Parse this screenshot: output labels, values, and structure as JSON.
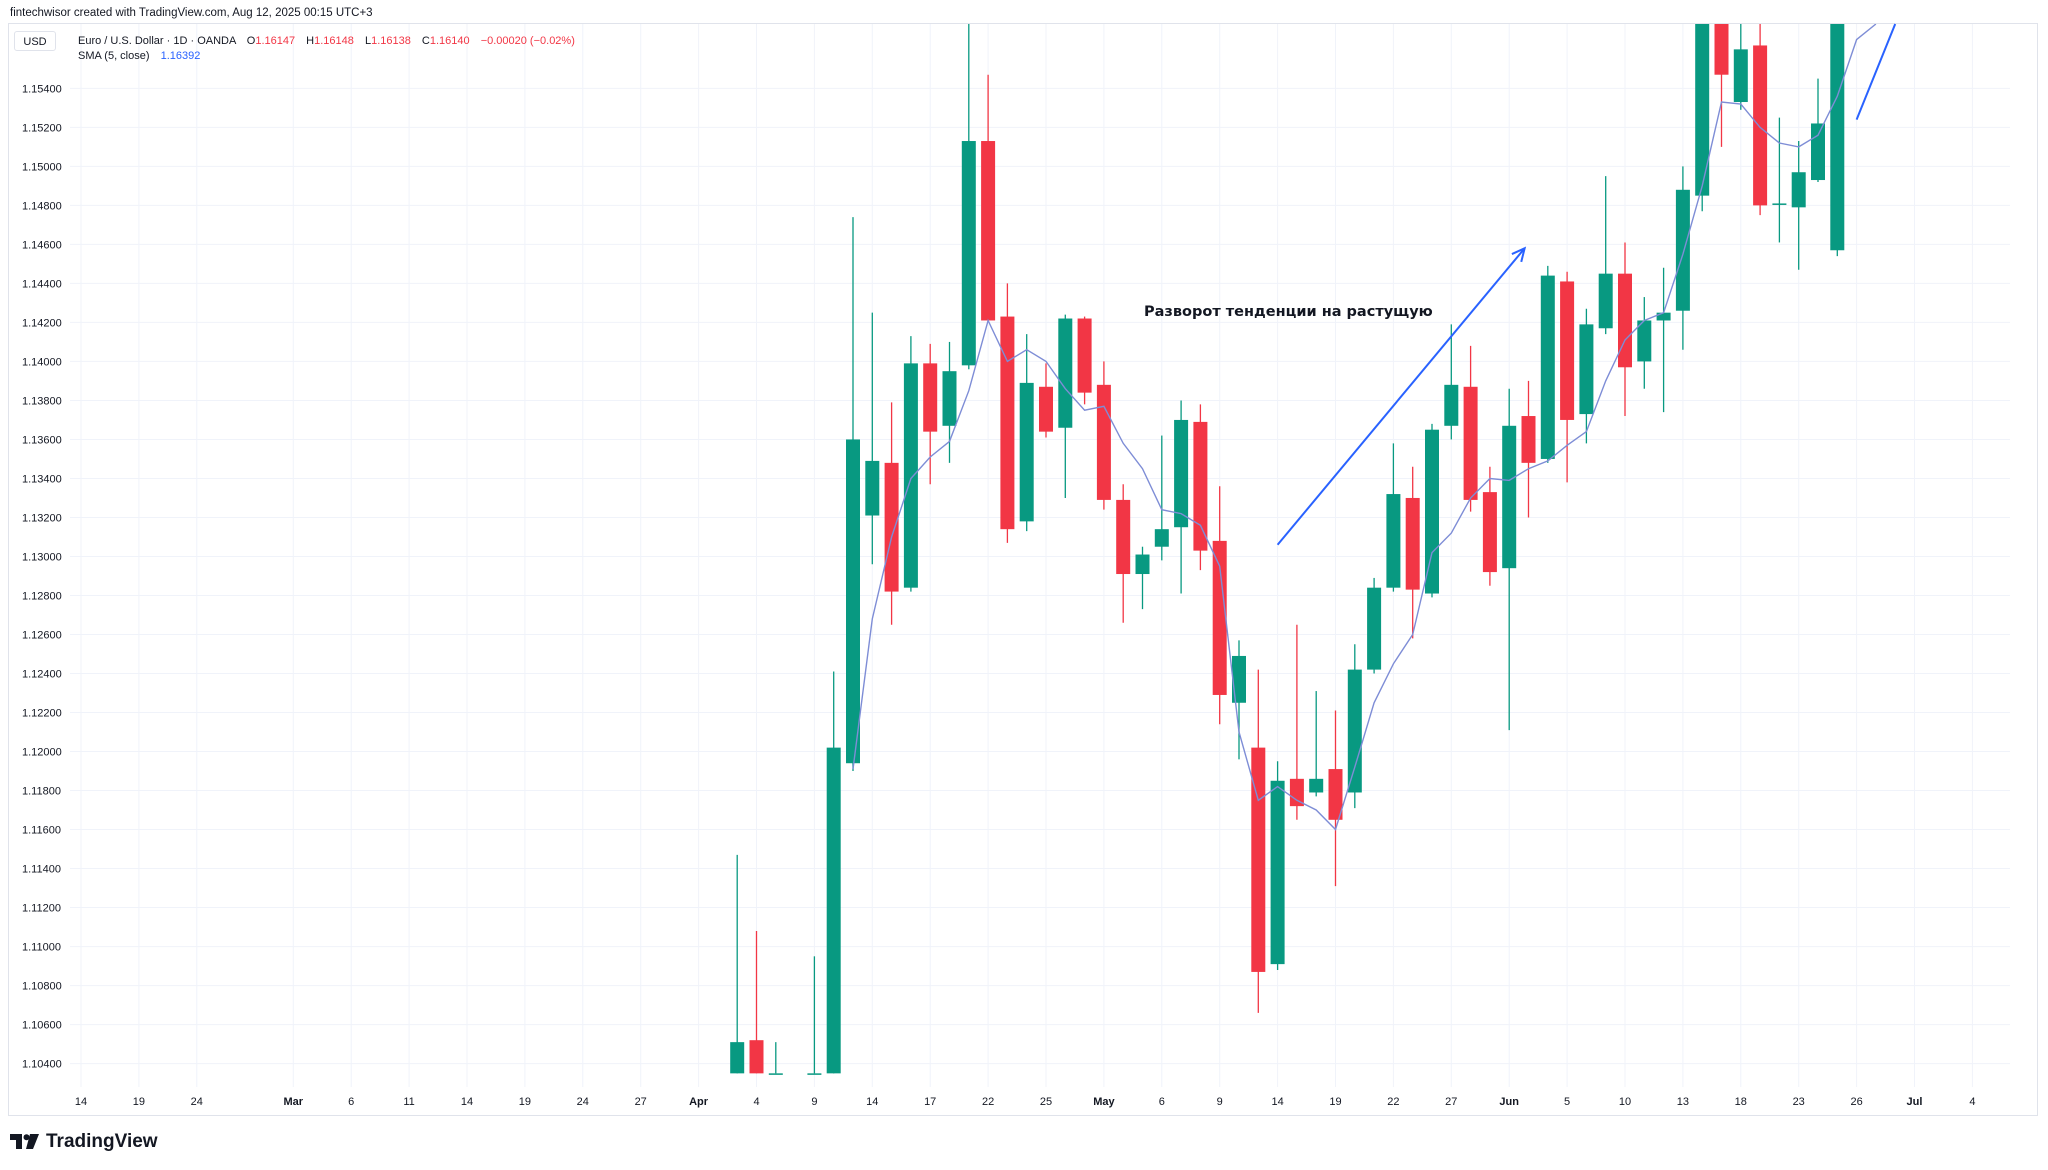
{
  "header": {
    "created_line": "fintechwisor created with TradingView.com, Aug 12, 2025 00:15 UTC+3"
  },
  "legend": {
    "symbol": "Euro / U.S. Dollar · 1D · OANDA",
    "o_label": "O",
    "o_value": "1.16147",
    "h_label": "H",
    "h_value": "1.16148",
    "l_label": "L",
    "l_value": "1.16138",
    "c_label": "C",
    "c_value": "1.16140",
    "change": "−0.00020 (−0.02%)",
    "sma_label": "SMA (5, close)",
    "sma_value": "1.16392"
  },
  "currency_button": "USD",
  "annotation_text": "Разворот тенденции на растущую",
  "brand": {
    "name": "TradingView"
  },
  "colors": {
    "up": "#089981",
    "down": "#f23645",
    "sma": "#7e8dd6",
    "arrow": "#2962ff",
    "grid": "#f0f3fa"
  },
  "chart_data": {
    "type": "candlestick",
    "ylim": [
      1.1028,
      1.1573
    ],
    "yticks": [
      "1.15400",
      "1.15200",
      "1.15000",
      "1.14800",
      "1.14600",
      "1.14400",
      "1.14200",
      "1.14000",
      "1.13800",
      "1.13600",
      "1.13400",
      "1.13200",
      "1.13000",
      "1.12800",
      "1.12600",
      "1.12400",
      "1.12200",
      "1.12000",
      "1.11800",
      "1.11600",
      "1.11400",
      "1.11200",
      "1.11000",
      "1.10800",
      "1.10600",
      "1.10400"
    ],
    "xticks": [
      {
        "label": "14",
        "slot": 0
      },
      {
        "label": "19",
        "slot": 3
      },
      {
        "label": "24",
        "slot": 6
      },
      {
        "label": "Mar",
        "slot": 11,
        "month": true
      },
      {
        "label": "6",
        "slot": 14
      },
      {
        "label": "11",
        "slot": 17
      },
      {
        "label": "14",
        "slot": 20
      },
      {
        "label": "19",
        "slot": 23
      },
      {
        "label": "24",
        "slot": 26
      },
      {
        "label": "27",
        "slot": 29
      },
      {
        "label": "Apr",
        "slot": 32,
        "month": true
      },
      {
        "label": "4",
        "slot": 35
      },
      {
        "label": "9",
        "slot": 38
      },
      {
        "label": "14",
        "slot": 41
      },
      {
        "label": "17",
        "slot": 44
      },
      {
        "label": "22",
        "slot": 47
      },
      {
        "label": "25",
        "slot": 50
      },
      {
        "label": "May",
        "slot": 53,
        "month": true
      },
      {
        "label": "6",
        "slot": 56
      },
      {
        "label": "9",
        "slot": 59
      },
      {
        "label": "14",
        "slot": 62
      },
      {
        "label": "19",
        "slot": 65
      },
      {
        "label": "22",
        "slot": 68
      },
      {
        "label": "27",
        "slot": 71
      },
      {
        "label": "Jun",
        "slot": 74,
        "month": true
      },
      {
        "label": "5",
        "slot": 77
      },
      {
        "label": "10",
        "slot": 80
      },
      {
        "label": "13",
        "slot": 83
      },
      {
        "label": "18",
        "slot": 86
      },
      {
        "label": "23",
        "slot": 89
      },
      {
        "label": "26",
        "slot": 92
      },
      {
        "label": "Jul",
        "slot": 95,
        "month": true
      },
      {
        "label": "4",
        "slot": 98
      }
    ],
    "candles": [
      {
        "s": 34,
        "o": 1.1035,
        "h": 1.1147,
        "l": 1.1035,
        "c": 1.1051
      },
      {
        "s": 35,
        "o": 1.1052,
        "h": 1.1108,
        "l": 1.1035,
        "c": 1.1035
      },
      {
        "s": 36,
        "o": 1.1035,
        "h": 1.1051,
        "l": 1.1035,
        "c": 1.1035
      },
      {
        "s": 38,
        "o": 1.1035,
        "h": 1.1095,
        "l": 1.1035,
        "c": 1.1035
      },
      {
        "s": 39,
        "o": 1.1035,
        "h": 1.1241,
        "l": 1.1035,
        "c": 1.1202
      },
      {
        "s": 40,
        "o": 1.1194,
        "h": 1.1474,
        "l": 1.119,
        "c": 1.136
      },
      {
        "s": 41,
        "o": 1.1321,
        "h": 1.1425,
        "l": 1.1296,
        "c": 1.1349
      },
      {
        "s": 42,
        "o": 1.1348,
        "h": 1.1379,
        "l": 1.1265,
        "c": 1.1282
      },
      {
        "s": 43,
        "o": 1.1284,
        "h": 1.1413,
        "l": 1.1282,
        "c": 1.1399
      },
      {
        "s": 44,
        "o": 1.1399,
        "h": 1.1409,
        "l": 1.1337,
        "c": 1.1364
      },
      {
        "s": 45,
        "o": 1.1367,
        "h": 1.141,
        "l": 1.1348,
        "c": 1.1395
      },
      {
        "s": 46,
        "o": 1.1398,
        "h": 1.1573,
        "l": 1.1396,
        "c": 1.1513
      },
      {
        "s": 47,
        "o": 1.1513,
        "h": 1.1547,
        "l": 1.142,
        "c": 1.1421
      },
      {
        "s": 48,
        "o": 1.1423,
        "h": 1.144,
        "l": 1.1307,
        "c": 1.1314
      },
      {
        "s": 49,
        "o": 1.1318,
        "h": 1.1414,
        "l": 1.1313,
        "c": 1.1389
      },
      {
        "s": 50,
        "o": 1.1387,
        "h": 1.1399,
        "l": 1.1361,
        "c": 1.1364
      },
      {
        "s": 51,
        "o": 1.1366,
        "h": 1.1424,
        "l": 1.133,
        "c": 1.1422
      },
      {
        "s": 52,
        "o": 1.1422,
        "h": 1.1423,
        "l": 1.1378,
        "c": 1.1384
      },
      {
        "s": 53,
        "o": 1.1388,
        "h": 1.14,
        "l": 1.1324,
        "c": 1.1329
      },
      {
        "s": 54,
        "o": 1.1329,
        "h": 1.1337,
        "l": 1.1266,
        "c": 1.1291
      },
      {
        "s": 55,
        "o": 1.1291,
        "h": 1.1305,
        "l": 1.1273,
        "c": 1.1301
      },
      {
        "s": 56,
        "o": 1.1305,
        "h": 1.1362,
        "l": 1.1298,
        "c": 1.1314
      },
      {
        "s": 57,
        "o": 1.1315,
        "h": 1.138,
        "l": 1.1281,
        "c": 1.137
      },
      {
        "s": 58,
        "o": 1.1369,
        "h": 1.1378,
        "l": 1.1293,
        "c": 1.1303
      },
      {
        "s": 59,
        "o": 1.1308,
        "h": 1.1336,
        "l": 1.1214,
        "c": 1.1229
      },
      {
        "s": 60,
        "o": 1.1225,
        "h": 1.1257,
        "l": 1.1196,
        "c": 1.1249
      },
      {
        "s": 61,
        "o": 1.1202,
        "h": 1.1242,
        "l": 1.1066,
        "c": 1.1087
      },
      {
        "s": 62,
        "o": 1.1091,
        "h": 1.1195,
        "l": 1.1088,
        "c": 1.1185
      },
      {
        "s": 63,
        "o": 1.1186,
        "h": 1.1265,
        "l": 1.1165,
        "c": 1.1172
      },
      {
        "s": 64,
        "o": 1.1179,
        "h": 1.1231,
        "l": 1.1177,
        "c": 1.1186
      },
      {
        "s": 65,
        "o": 1.1191,
        "h": 1.1221,
        "l": 1.1131,
        "c": 1.1165
      },
      {
        "s": 66,
        "o": 1.1179,
        "h": 1.1255,
        "l": 1.1171,
        "c": 1.1242
      },
      {
        "s": 67,
        "o": 1.1242,
        "h": 1.1289,
        "l": 1.124,
        "c": 1.1284
      },
      {
        "s": 68,
        "o": 1.1284,
        "h": 1.1358,
        "l": 1.1282,
        "c": 1.1332
      },
      {
        "s": 69,
        "o": 1.133,
        "h": 1.1346,
        "l": 1.1258,
        "c": 1.1283
      },
      {
        "s": 70,
        "o": 1.1281,
        "h": 1.1368,
        "l": 1.1279,
        "c": 1.1365
      },
      {
        "s": 71,
        "o": 1.1367,
        "h": 1.1419,
        "l": 1.136,
        "c": 1.1388
      },
      {
        "s": 72,
        "o": 1.1387,
        "h": 1.1408,
        "l": 1.1323,
        "c": 1.1329
      },
      {
        "s": 73,
        "o": 1.1333,
        "h": 1.1346,
        "l": 1.1285,
        "c": 1.1292
      },
      {
        "s": 74,
        "o": 1.1294,
        "h": 1.1386,
        "l": 1.1211,
        "c": 1.1367
      },
      {
        "s": 75,
        "o": 1.1372,
        "h": 1.139,
        "l": 1.132,
        "c": 1.1348
      },
      {
        "s": 76,
        "o": 1.135,
        "h": 1.1449,
        "l": 1.1348,
        "c": 1.1444
      },
      {
        "s": 77,
        "o": 1.1441,
        "h": 1.1446,
        "l": 1.1338,
        "c": 1.137
      },
      {
        "s": 78,
        "o": 1.1373,
        "h": 1.1427,
        "l": 1.1358,
        "c": 1.1419
      },
      {
        "s": 79,
        "o": 1.1417,
        "h": 1.1495,
        "l": 1.1414,
        "c": 1.1445
      },
      {
        "s": 80,
        "o": 1.1445,
        "h": 1.1461,
        "l": 1.1372,
        "c": 1.1397
      },
      {
        "s": 81,
        "o": 1.14,
        "h": 1.1433,
        "l": 1.1386,
        "c": 1.1421
      },
      {
        "s": 82,
        "o": 1.1421,
        "h": 1.1448,
        "l": 1.1374,
        "c": 1.1425
      },
      {
        "s": 83,
        "o": 1.1426,
        "h": 1.15,
        "l": 1.1406,
        "c": 1.1488
      },
      {
        "s": 84,
        "o": 1.1485,
        "h": 1.1573,
        "l": 1.1477,
        "c": 1.1573
      },
      {
        "s": 85,
        "o": 1.1573,
        "h": 1.1573,
        "l": 1.151,
        "c": 1.1547
      },
      {
        "s": 86,
        "o": 1.1533,
        "h": 1.1573,
        "l": 1.1529,
        "c": 1.156
      },
      {
        "s": 87,
        "o": 1.1562,
        "h": 1.1573,
        "l": 1.1475,
        "c": 1.148
      },
      {
        "s": 88,
        "o": 1.1481,
        "h": 1.1525,
        "l": 1.1461,
        "c": 1.1481
      },
      {
        "s": 89,
        "o": 1.1479,
        "h": 1.1513,
        "l": 1.1447,
        "c": 1.1497
      },
      {
        "s": 90,
        "o": 1.1493,
        "h": 1.1545,
        "l": 1.1492,
        "c": 1.1522
      },
      {
        "s": 91,
        "o": 1.1457,
        "h": 1.1573,
        "l": 1.1454,
        "c": 1.1573
      }
    ],
    "sma": [
      {
        "s": 40,
        "v": 1.1191
      },
      {
        "s": 41,
        "v": 1.1268
      },
      {
        "s": 42,
        "v": 1.131
      },
      {
        "s": 43,
        "v": 1.134
      },
      {
        "s": 44,
        "v": 1.1351
      },
      {
        "s": 45,
        "v": 1.1359
      },
      {
        "s": 46,
        "v": 1.1385
      },
      {
        "s": 47,
        "v": 1.1421
      },
      {
        "s": 48,
        "v": 1.14
      },
      {
        "s": 49,
        "v": 1.1406
      },
      {
        "s": 50,
        "v": 1.14
      },
      {
        "s": 51,
        "v": 1.1386
      },
      {
        "s": 52,
        "v": 1.1375
      },
      {
        "s": 53,
        "v": 1.1377
      },
      {
        "s": 54,
        "v": 1.1358
      },
      {
        "s": 55,
        "v": 1.1345
      },
      {
        "s": 56,
        "v": 1.1324
      },
      {
        "s": 57,
        "v": 1.1322
      },
      {
        "s": 58,
        "v": 1.1316
      },
      {
        "s": 59,
        "v": 1.1295
      },
      {
        "s": 60,
        "v": 1.121
      },
      {
        "s": 61,
        "v": 1.1175
      },
      {
        "s": 62,
        "v": 1.1182
      },
      {
        "s": 63,
        "v": 1.1175
      },
      {
        "s": 64,
        "v": 1.117
      },
      {
        "s": 65,
        "v": 1.116
      },
      {
        "s": 66,
        "v": 1.1192
      },
      {
        "s": 67,
        "v": 1.1225
      },
      {
        "s": 68,
        "v": 1.1245
      },
      {
        "s": 69,
        "v": 1.126
      },
      {
        "s": 70,
        "v": 1.1302
      },
      {
        "s": 71,
        "v": 1.1312
      },
      {
        "s": 72,
        "v": 1.133
      },
      {
        "s": 73,
        "v": 1.134
      },
      {
        "s": 74,
        "v": 1.1339
      },
      {
        "s": 75,
        "v": 1.1345
      },
      {
        "s": 76,
        "v": 1.1349
      },
      {
        "s": 77,
        "v": 1.1357
      },
      {
        "s": 78,
        "v": 1.1364
      },
      {
        "s": 79,
        "v": 1.139
      },
      {
        "s": 80,
        "v": 1.1411
      },
      {
        "s": 81,
        "v": 1.1421
      },
      {
        "s": 82,
        "v": 1.1425
      },
      {
        "s": 83,
        "v": 1.1455
      },
      {
        "s": 84,
        "v": 1.149
      },
      {
        "s": 85,
        "v": 1.1533
      },
      {
        "s": 86,
        "v": 1.1532
      },
      {
        "s": 87,
        "v": 1.152
      },
      {
        "s": 88,
        "v": 1.1512
      },
      {
        "s": 89,
        "v": 1.151
      },
      {
        "s": 90,
        "v": 1.1516
      },
      {
        "s": 91,
        "v": 1.1536
      },
      {
        "s": 92,
        "v": 1.1565
      },
      {
        "s": 93,
        "v": 1.1573
      }
    ],
    "arrows": [
      {
        "from": {
          "s": 62.0,
          "v": 1.1306
        },
        "to": {
          "s": 74.8,
          "v": 1.1458
        }
      },
      {
        "from": {
          "s": 92.0,
          "v": 1.1524
        },
        "to": {
          "s": 94.0,
          "v": 1.1573
        }
      }
    ]
  }
}
